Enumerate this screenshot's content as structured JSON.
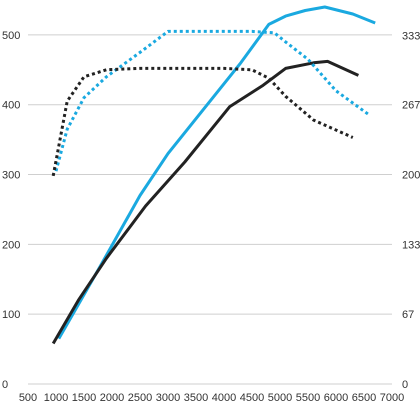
{
  "chart_data": {
    "type": "line",
    "title": "",
    "xlabel": "",
    "ylabel": "",
    "y2label": "",
    "grid": true,
    "legend": "none",
    "xlim": [
      500,
      7000
    ],
    "ylim": [
      0,
      550
    ],
    "y2lim": [
      0,
      366.7
    ],
    "x_ticks": [
      500,
      1000,
      1500,
      2000,
      2500,
      3000,
      3500,
      4000,
      4500,
      5000,
      5500,
      6000,
      6500,
      7000
    ],
    "y_ticks": [
      0,
      100,
      200,
      300,
      400,
      500
    ],
    "y2_ticks": [
      0,
      67,
      133,
      200,
      267,
      333
    ],
    "series": [
      {
        "color": "#1aa9e0",
        "style": "solid",
        "x": [
          1050,
          1300,
          1800,
          2500,
          3000,
          3700,
          4300,
          4800,
          5100,
          5450,
          5800,
          6300,
          6700
        ],
        "y": [
          65,
          100,
          170,
          270,
          330,
          400,
          460,
          515,
          527,
          535,
          540,
          530,
          517
        ]
      },
      {
        "color": "#222222",
        "style": "solid",
        "x": [
          950,
          1400,
          1900,
          2600,
          3300,
          4100,
          4700,
          5100,
          5600,
          5850,
          6400
        ],
        "y": [
          58,
          120,
          180,
          255,
          318,
          397,
          428,
          452,
          460,
          462,
          442
        ]
      },
      {
        "color": "#1aa9e0",
        "style": "dotted",
        "x": [
          1000,
          1200,
          1500,
          1900,
          2500,
          3000,
          3500,
          4000,
          4500,
          4900,
          5100,
          5500,
          6000,
          6600
        ],
        "y": [
          305,
          365,
          410,
          440,
          475,
          505,
          505,
          505,
          505,
          503,
          490,
          465,
          420,
          385
        ]
      },
      {
        "color": "#222222",
        "style": "dotted",
        "x": [
          950,
          1200,
          1500,
          1900,
          2500,
          3000,
          3500,
          4000,
          4500,
          4800,
          5100,
          5600,
          6300
        ],
        "y": [
          298,
          405,
          440,
          450,
          452,
          452,
          452,
          452,
          450,
          438,
          412,
          378,
          353
        ]
      }
    ]
  }
}
